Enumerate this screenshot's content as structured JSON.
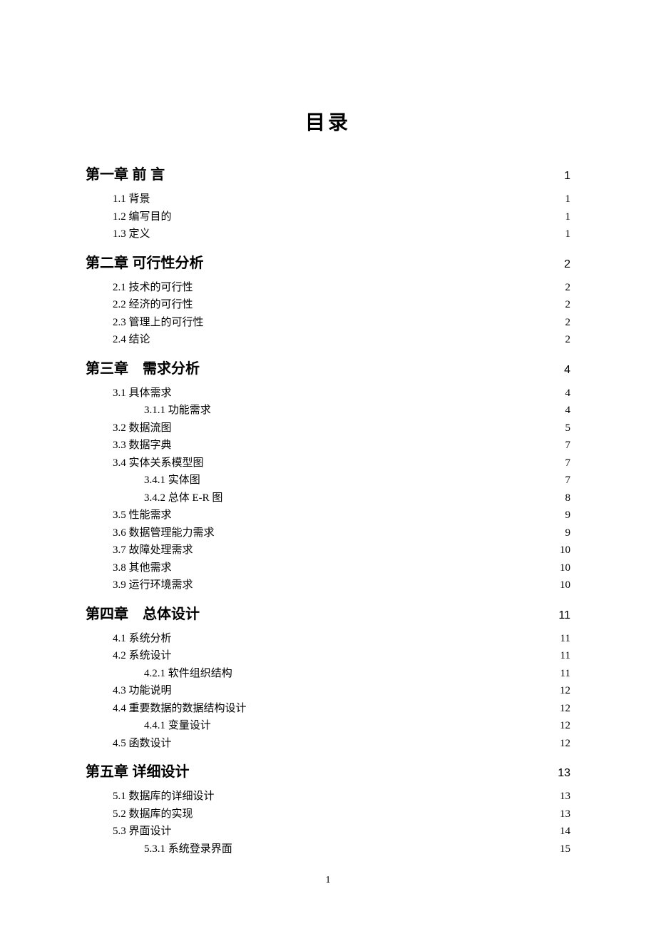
{
  "title": "目录",
  "pageNumber": "1",
  "entries": [
    {
      "level": 1,
      "label": "第一章 前 言",
      "page": "1",
      "leader": "dots"
    },
    {
      "level": 2,
      "label": "1.1 背景",
      "page": "1",
      "leader": "dots"
    },
    {
      "level": 2,
      "label": "1.2 编写目的",
      "page": "1",
      "leader": "dots"
    },
    {
      "level": 2,
      "label": "1.3 定义",
      "page": "1",
      "leader": "dots"
    },
    {
      "level": 1,
      "label": "第二章 可行性分析",
      "page": "2",
      "leader": "dots"
    },
    {
      "level": 2,
      "label": "2.1 技术的可行性",
      "page": "2",
      "leader": "dots"
    },
    {
      "level": 2,
      "label": "2.2 经济的可行性",
      "page": "2",
      "leader": "dots"
    },
    {
      "level": 2,
      "label": "2.3 管理上的可行性",
      "page": "2",
      "leader": "dots"
    },
    {
      "level": 2,
      "label": "2.4 结论",
      "page": "2",
      "leader": "dots"
    },
    {
      "level": 1,
      "label": "第三章 需求分析",
      "page": "4",
      "leader": "dots"
    },
    {
      "level": 2,
      "label": "3.1 具体需求",
      "page": "4",
      "leader": "dots"
    },
    {
      "level": 3,
      "label": "3.1.1 功能需求",
      "page": "4",
      "leader": "dots"
    },
    {
      "level": 2,
      "label": "3.2 数据流图",
      "page": "5",
      "leader": "dots"
    },
    {
      "level": 2,
      "label": "3.3 数据字典",
      "page": "7",
      "leader": "dots"
    },
    {
      "level": 2,
      "label": "3.4 实体关系模型图",
      "page": "7",
      "leader": "dots"
    },
    {
      "level": 3,
      "label": "3.4.1 实体图",
      "page": "7",
      "leader": "dots"
    },
    {
      "level": 3,
      "label": "3.4.2 总体 E-R 图",
      "page": "8",
      "leader": "dots"
    },
    {
      "level": 2,
      "label": "3.5 性能需求",
      "page": "9",
      "leader": "dots"
    },
    {
      "level": 2,
      "label": "3.6 数据管理能力需求",
      "page": "9",
      "leader": "dots"
    },
    {
      "level": 2,
      "label": "3.7 故障处理需求",
      "page": "10",
      "leader": "wide"
    },
    {
      "level": 2,
      "label": "3.8 其他需求",
      "page": "10",
      "leader": "wide"
    },
    {
      "level": 2,
      "label": "3.9 运行环境需求",
      "page": "10",
      "leader": "wide"
    },
    {
      "level": 1,
      "label": "第四章 总体设计",
      "page": "11",
      "leader": "dots"
    },
    {
      "level": 2,
      "label": "4.1 系统分析",
      "page": "11",
      "leader": "dots"
    },
    {
      "level": 2,
      "label": "4.2 系统设计",
      "page": "11",
      "leader": "dots"
    },
    {
      "level": 3,
      "label": "4.2.1 软件组织结构",
      "page": "11",
      "leader": "dots"
    },
    {
      "level": 2,
      "label": "4.3 功能说明",
      "page": "12",
      "leader": "dots"
    },
    {
      "level": 2,
      "label": "4.4 重要数据的数据结构设计",
      "page": "12",
      "leader": "dots"
    },
    {
      "level": 3,
      "label": "4.4.1 变量设计",
      "page": "12",
      "leader": "dots"
    },
    {
      "level": 2,
      "label": "4.5 函数设计",
      "page": "12",
      "leader": "dots"
    },
    {
      "level": 1,
      "label": "第五章 详细设计",
      "page": "13",
      "leader": "dots"
    },
    {
      "level": 2,
      "label": "5.1 数据库的详细设计",
      "page": "13",
      "leader": "dots"
    },
    {
      "level": 2,
      "label": "5.2 数据库的实现",
      "page": "13",
      "leader": "dots"
    },
    {
      "level": 2,
      "label": "5.3 界面设计",
      "page": "14",
      "leader": "dots"
    },
    {
      "level": 3,
      "label": "5.3.1 系统登录界面",
      "page": "15",
      "leader": "dots"
    }
  ]
}
